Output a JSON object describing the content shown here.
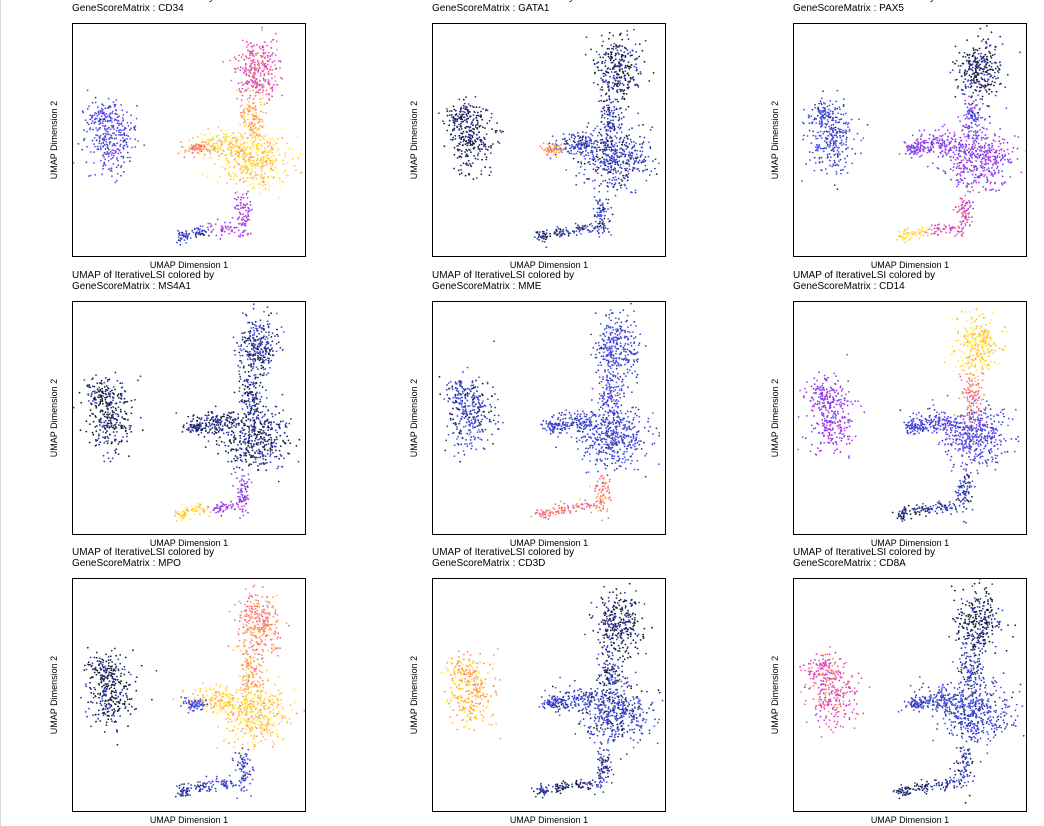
{
  "figure": {
    "title_prefix": "UMAP of IterativeLSI colored by",
    "xlabel": "UMAP Dimension 1",
    "ylabel": "UMAP Dimension 2",
    "palette": [
      "#1c1d3a",
      "#2e3db5",
      "#4b52e8",
      "#8a3bf0",
      "#c43fd7",
      "#f05aa0",
      "#ff8c5c",
      "#ffc247",
      "#fff143"
    ]
  },
  "chart_data": [
    {
      "type": "scatter",
      "title": "UMAP of IterativeLSI colored by",
      "subtitle": "GeneScoreMatrix : CD34",
      "xlabel": "UMAP Dimension 1",
      "ylabel": "UMAP Dimension 2",
      "gene": "CD34",
      "cluster_levels": {
        "left": 0.25,
        "top": 0.6,
        "mid": 0.82,
        "center": 0.92,
        "bottom": 0.45,
        "far_bottom": 0.15,
        "arm": 0.75
      }
    },
    {
      "type": "scatter",
      "title": "UMAP of IterativeLSI colored by",
      "subtitle": "GeneScoreMatrix : GATA1",
      "xlabel": "UMAP Dimension 1",
      "ylabel": "UMAP Dimension 2",
      "gene": "GATA1",
      "cluster_levels": {
        "left": 0.03,
        "top": 0.05,
        "mid": 0.12,
        "center": 0.15,
        "bottom": 0.15,
        "far_bottom": 0.08,
        "arm": 0.78
      }
    },
    {
      "type": "scatter",
      "title": "UMAP of IterativeLSI colored by",
      "subtitle": "GeneScoreMatrix : PAX5",
      "xlabel": "UMAP Dimension 1",
      "ylabel": "UMAP Dimension 2",
      "gene": "PAX5",
      "cluster_levels": {
        "left": 0.2,
        "top": 0.03,
        "mid": 0.3,
        "center": 0.38,
        "bottom": 0.6,
        "far_bottom": 0.93,
        "arm": 0.38
      }
    },
    {
      "type": "scatter",
      "title": "UMAP of IterativeLSI colored by",
      "subtitle": "GeneScoreMatrix : MS4A1",
      "xlabel": "UMAP Dimension 1",
      "ylabel": "UMAP Dimension 2",
      "gene": "MS4A1",
      "cluster_levels": {
        "left": 0.02,
        "top": 0.12,
        "mid": 0.1,
        "center": 0.06,
        "bottom": 0.4,
        "far_bottom": 0.92,
        "arm": 0.05
      }
    },
    {
      "type": "scatter",
      "title": "UMAP of IterativeLSI colored by",
      "subtitle": "GeneScoreMatrix : MME",
      "xlabel": "UMAP Dimension 1",
      "ylabel": "UMAP Dimension 2",
      "gene": "MME",
      "cluster_levels": {
        "left": 0.15,
        "top": 0.2,
        "mid": 0.22,
        "center": 0.2,
        "bottom": 0.72,
        "far_bottom": 0.7,
        "arm": 0.2
      }
    },
    {
      "type": "scatter",
      "title": "UMAP of IterativeLSI colored by",
      "subtitle": "GeneScoreMatrix : CD14",
      "xlabel": "UMAP Dimension 1",
      "ylabel": "UMAP Dimension 2",
      "gene": "CD14",
      "cluster_levels": {
        "left": 0.4,
        "top": 0.92,
        "mid": 0.7,
        "center": 0.25,
        "bottom": 0.12,
        "far_bottom": 0.05,
        "arm": 0.22
      }
    },
    {
      "type": "scatter",
      "title": "UMAP of IterativeLSI colored by",
      "subtitle": "GeneScoreMatrix : MPO",
      "xlabel": "UMAP Dimension 1",
      "ylabel": "UMAP Dimension 2",
      "gene": "MPO",
      "cluster_levels": {
        "left": 0.02,
        "top": 0.75,
        "mid": 0.8,
        "center": 0.9,
        "bottom": 0.2,
        "far_bottom": 0.1,
        "arm": 0.22
      }
    },
    {
      "type": "scatter",
      "title": "UMAP of IterativeLSI colored by",
      "subtitle": "GeneScoreMatrix : CD3D",
      "xlabel": "UMAP Dimension 1",
      "ylabel": "UMAP Dimension 2",
      "gene": "CD3D",
      "cluster_levels": {
        "left": 0.86,
        "top": 0.03,
        "mid": 0.12,
        "center": 0.15,
        "bottom": 0.1,
        "far_bottom": 0.05,
        "arm": 0.2
      }
    },
    {
      "type": "scatter",
      "title": "UMAP of IterativeLSI colored by",
      "subtitle": "GeneScoreMatrix : CD8A",
      "xlabel": "UMAP Dimension 1",
      "ylabel": "UMAP Dimension 2",
      "gene": "CD8A",
      "cluster_levels": {
        "left": 0.6,
        "top": 0.03,
        "mid": 0.15,
        "center": 0.18,
        "bottom": 0.12,
        "far_bottom": 0.05,
        "arm": 0.2
      }
    }
  ]
}
